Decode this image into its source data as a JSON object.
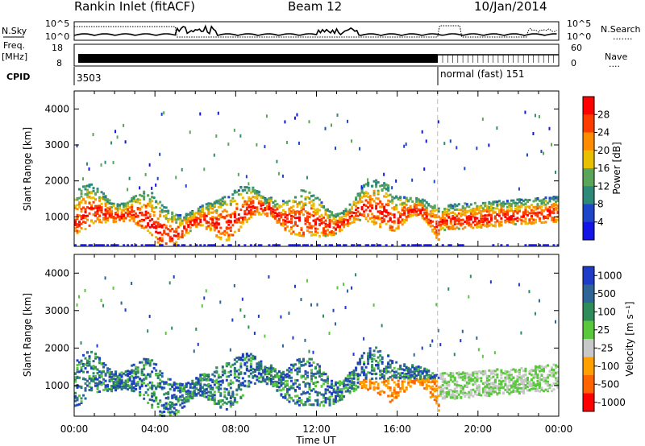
{
  "header": {
    "station": "Rankin Inlet (fitACF)",
    "beam": "Beam 12",
    "date": "10/Jan/2014"
  },
  "nsky_panel": {
    "left_label": "N.Sky",
    "right_label": "N.Search",
    "left_ticks": [
      "10^5",
      "10^0"
    ],
    "right_ticks": [
      "10^5",
      "10^0"
    ],
    "right_dots": "......."
  },
  "freq_panel": {
    "left_label_1": "Freq.",
    "left_label_2": "[MHz]",
    "left_ticks": [
      "18",
      "8"
    ],
    "right_label": "Nave",
    "right_ticks": [
      "60",
      "0"
    ],
    "right_dots": "...."
  },
  "cpid_panel": {
    "label": "CPID",
    "segments": [
      {
        "text": "3503",
        "start_hour": 0
      },
      {
        "text": "normal (fast) 151",
        "start_hour": 18
      }
    ]
  },
  "time_axis": {
    "label": "Time UT",
    "ticks": [
      "00:00",
      "04:00",
      "08:00",
      "12:00",
      "16:00",
      "20:00",
      "00:00"
    ]
  },
  "chart_data": [
    {
      "type": "heatmap",
      "name": "power-panel",
      "xlabel": "",
      "ylabel": "Slant Range [km]",
      "xlim_hours": [
        0,
        24
      ],
      "ylim": [
        180,
        4500
      ],
      "yticks": [
        "1000",
        "2000",
        "3000",
        "4000"
      ],
      "colorbar_label": "Power [dB]",
      "colorbar_ticks": [
        "4",
        "8",
        "12",
        "16",
        "20",
        "24",
        "28"
      ],
      "colors": [
        "#1414e6",
        "#1e46c8",
        "#2e8a78",
        "#5aa55a",
        "#e8c000",
        "#ff8c00",
        "#ff3c00",
        "#ff0000"
      ],
      "mode_change_hour": 18
    },
    {
      "type": "heatmap",
      "name": "velocity-panel",
      "xlabel": "Time UT",
      "ylabel": "Slant Range [km]",
      "xlim_hours": [
        0,
        24
      ],
      "ylim": [
        180,
        4500
      ],
      "yticks": [
        "1000",
        "2000",
        "3000",
        "4000"
      ],
      "colorbar_label": "Velocity [m s⁻¹]",
      "colorbar_ticks": [
        "1000",
        "500",
        "100",
        "25",
        "-25",
        "-100",
        "-500",
        "-1000"
      ],
      "colors": [
        "#1e3cc8",
        "#2e6496",
        "#2e8c5a",
        "#5ac83c",
        "#c8c8c8",
        "#ffa000",
        "#ff6400",
        "#ff0000"
      ],
      "mode_change_hour": 18
    }
  ]
}
